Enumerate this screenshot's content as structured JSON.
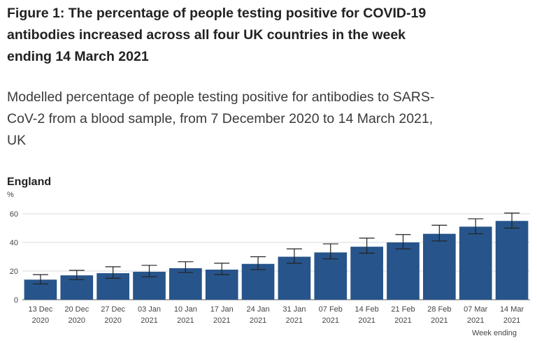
{
  "figure": {
    "title_line1": "Figure 1: The percentage of people testing positive for COVID-19",
    "title_line2": "antibodies increased across all four UK countries in the week",
    "title_line3": "ending 14 March 2021",
    "subtitle_line1": "Modelled percentage of people testing positive for antibodies to SARS-",
    "subtitle_line2": "CoV-2 from a blood sample, from 7 December 2020 to 14 March 2021,",
    "subtitle_line3": "UK"
  },
  "chart_data": {
    "type": "bar",
    "title": "England",
    "ylabel": "%",
    "xlabel": "Week ending",
    "ylim": [
      0,
      60
    ],
    "yticks": [
      0,
      20,
      40,
      60
    ],
    "grid": true,
    "bar_color": "#27548a",
    "categories": [
      [
        "13 Dec",
        "2020"
      ],
      [
        "20 Dec",
        "2020"
      ],
      [
        "27 Dec",
        "2020"
      ],
      [
        "03 Jan",
        "2021"
      ],
      [
        "10 Jan",
        "2021"
      ],
      [
        "17 Jan",
        "2021"
      ],
      [
        "24 Jan",
        "2021"
      ],
      [
        "31 Jan",
        "2021"
      ],
      [
        "07 Feb",
        "2021"
      ],
      [
        "14 Feb",
        "2021"
      ],
      [
        "21 Feb",
        "2021"
      ],
      [
        "28 Feb",
        "2021"
      ],
      [
        "07 Mar",
        "2021"
      ],
      [
        "14 Mar",
        "2021"
      ]
    ],
    "values": [
      14,
      17,
      18.5,
      19.5,
      22,
      21,
      25,
      30,
      33,
      37,
      40,
      46,
      51,
      55
    ],
    "lower": [
      11,
      14,
      15,
      16,
      19,
      17.5,
      21,
      25.5,
      28.5,
      32.5,
      35.5,
      41,
      46,
      50
    ],
    "upper": [
      17.5,
      20.5,
      23,
      24,
      26.5,
      25.5,
      30,
      35.5,
      39,
      43,
      45.5,
      52,
      56.5,
      60.5
    ]
  }
}
